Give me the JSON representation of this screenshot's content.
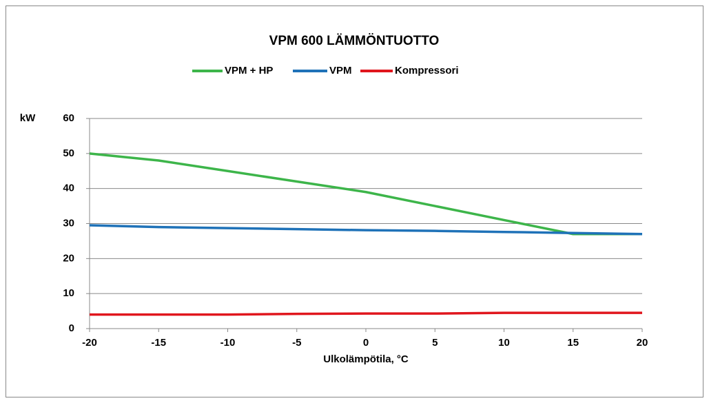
{
  "chart_data": {
    "type": "line",
    "title": "VPM 600 LÄMMÖNTUOTTO",
    "x_label": "Ulkolämpötila, °C",
    "y_label": "kW",
    "x": [
      -20,
      -15,
      -10,
      -5,
      0,
      5,
      10,
      15,
      20
    ],
    "series": [
      {
        "name": "VPM + HP",
        "color": "#3db54a",
        "values": [
          50,
          48,
          45,
          42,
          39,
          35,
          31,
          27,
          27
        ]
      },
      {
        "name": "VPM",
        "color": "#1f72b8",
        "values": [
          29.5,
          29,
          28.7,
          28.4,
          28.1,
          27.9,
          27.6,
          27.3,
          27
        ]
      },
      {
        "name": "Kompressori",
        "color": "#e0161d",
        "values": [
          4,
          4,
          4,
          4.2,
          4.3,
          4.3,
          4.5,
          4.5,
          4.5
        ]
      }
    ],
    "xlim": [
      -20,
      20
    ],
    "xticks": [
      -20,
      -15,
      -10,
      -5,
      0,
      5,
      10,
      15,
      20
    ],
    "ylim": [
      0,
      60
    ],
    "yticks": [
      0,
      10,
      20,
      30,
      40,
      50,
      60
    ],
    "grid": true,
    "legend": "top"
  }
}
